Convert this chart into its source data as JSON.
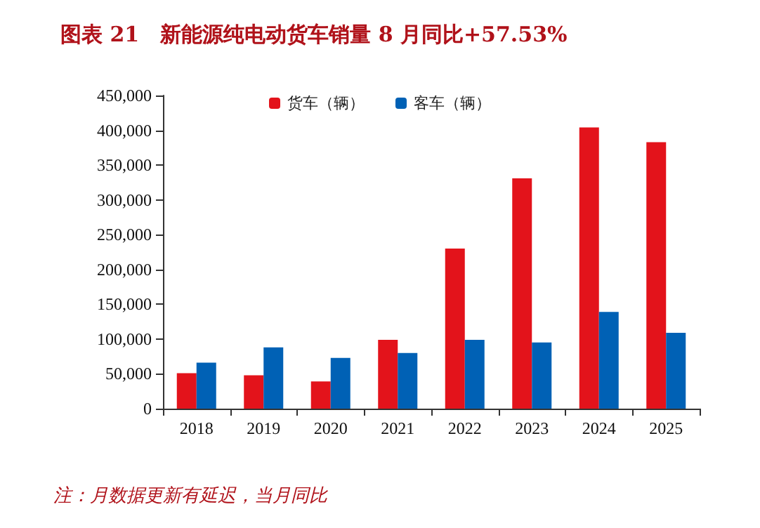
{
  "chart_data": {
    "type": "bar",
    "title": "图表 21　新能源纯电动货车销量 8 月同比+57.53%",
    "categories": [
      "2018",
      "2019",
      "2020",
      "2021",
      "2022",
      "2023",
      "2024",
      "2025"
    ],
    "series": [
      {
        "name": "货车（辆）",
        "color": "#e3131b",
        "values": [
          51000,
          48000,
          39000,
          99000,
          230000,
          331000,
          404000,
          383000
        ]
      },
      {
        "name": "客车（辆）",
        "color": "#0061b5",
        "values": [
          66000,
          88000,
          73000,
          80000,
          99000,
          95000,
          139000,
          109000
        ]
      }
    ],
    "ylim": [
      0,
      450000
    ],
    "yticks": [
      0,
      {
        "value": 50000,
        "label": "50,000"
      },
      {
        "value": 100000,
        "label": "100,000"
      },
      {
        "value": 150000,
        "label": "150,000"
      },
      {
        "value": 200000,
        "label": "200,000"
      },
      {
        "value": 250000,
        "label": "250,000"
      },
      {
        "value": 300000,
        "label": "300,000"
      },
      {
        "value": 350000,
        "label": "350,000"
      },
      {
        "value": 400000,
        "label": "400,000"
      },
      {
        "value": 450000,
        "label": "450,000"
      }
    ],
    "grid": false,
    "legend": "top",
    "annotations": [
      "注：月数据更新有延迟，当月同比"
    ]
  }
}
